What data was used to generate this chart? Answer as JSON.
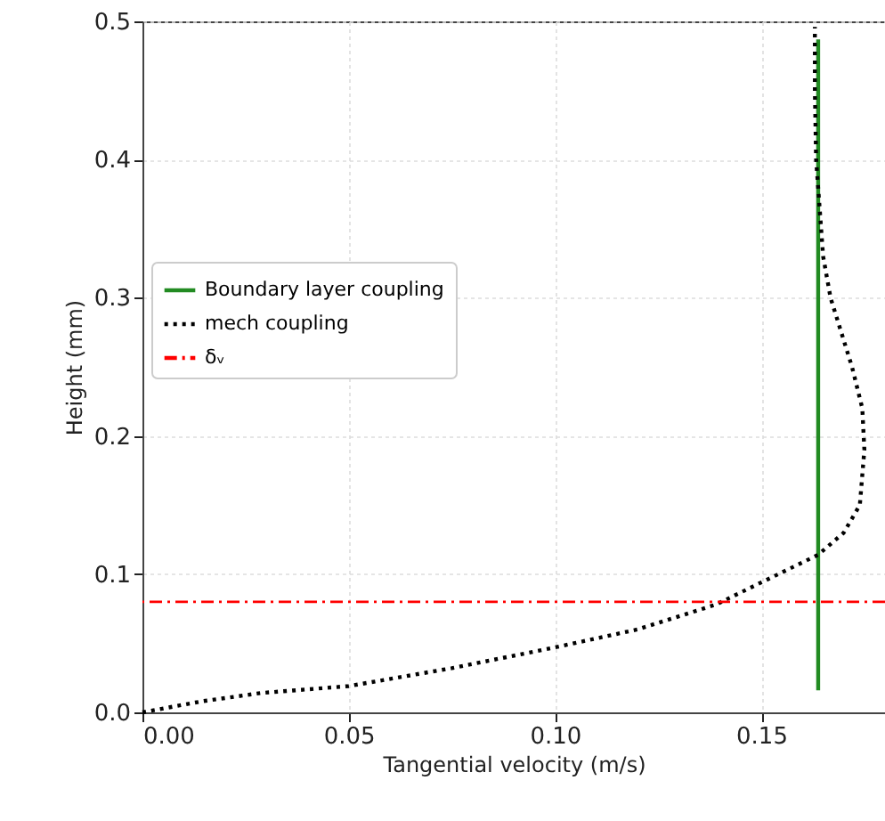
{
  "chart_data": {
    "type": "line",
    "xlabel": "Tangential velocity (m/s)",
    "ylabel": "Height (mm)",
    "xlim": [
      0,
      0.18
    ],
    "ylim": [
      0,
      0.5
    ],
    "xticks": [
      {
        "value": 0,
        "label": "0.00"
      },
      {
        "value": 0.05,
        "label": "0.05"
      },
      {
        "value": 0.1,
        "label": "0.10"
      },
      {
        "value": 0.15,
        "label": "0.15"
      }
    ],
    "yticks": [
      {
        "value": 0,
        "label": "0.0"
      },
      {
        "value": 0.1,
        "label": "0.1"
      },
      {
        "value": 0.2,
        "label": "0.2"
      },
      {
        "value": 0.3,
        "label": "0.3"
      },
      {
        "value": 0.4,
        "label": "0.4"
      },
      {
        "value": 0.5,
        "label": "0.5"
      }
    ],
    "grid": true,
    "legend": "left",
    "marker": "none",
    "series": [
      {
        "name": "Boundary layer coupling",
        "color": "#228b22",
        "line_style": "solid",
        "x": [
          0.1638,
          0.1638
        ],
        "values": [
          0.016,
          0.487
        ]
      },
      {
        "name": "mech coupling",
        "color": "#000000",
        "line_style": "dotted",
        "x": [
          0,
          0.0144,
          0.0287,
          0.05,
          0.075,
          0.1,
          0.12,
          0.139,
          0.15,
          0.1638,
          0.17,
          0.1739,
          0.175,
          0.1745,
          0.172,
          0.1668,
          0.165,
          0.1633,
          0.163,
          0.163
        ],
        "values": [
          0,
          0.008,
          0.014,
          0.019,
          0.032,
          0.047,
          0.06,
          0.078,
          0.094,
          0.114,
          0.13,
          0.15,
          0.19,
          0.22,
          0.25,
          0.3,
          0.33,
          0.4,
          0.45,
          0.496
        ]
      }
    ],
    "ref_lines": [
      {
        "axis": "y",
        "value": 0.08,
        "label": "δᵥ",
        "color": "#ff0000",
        "line_style": "dashed"
      }
    ]
  }
}
